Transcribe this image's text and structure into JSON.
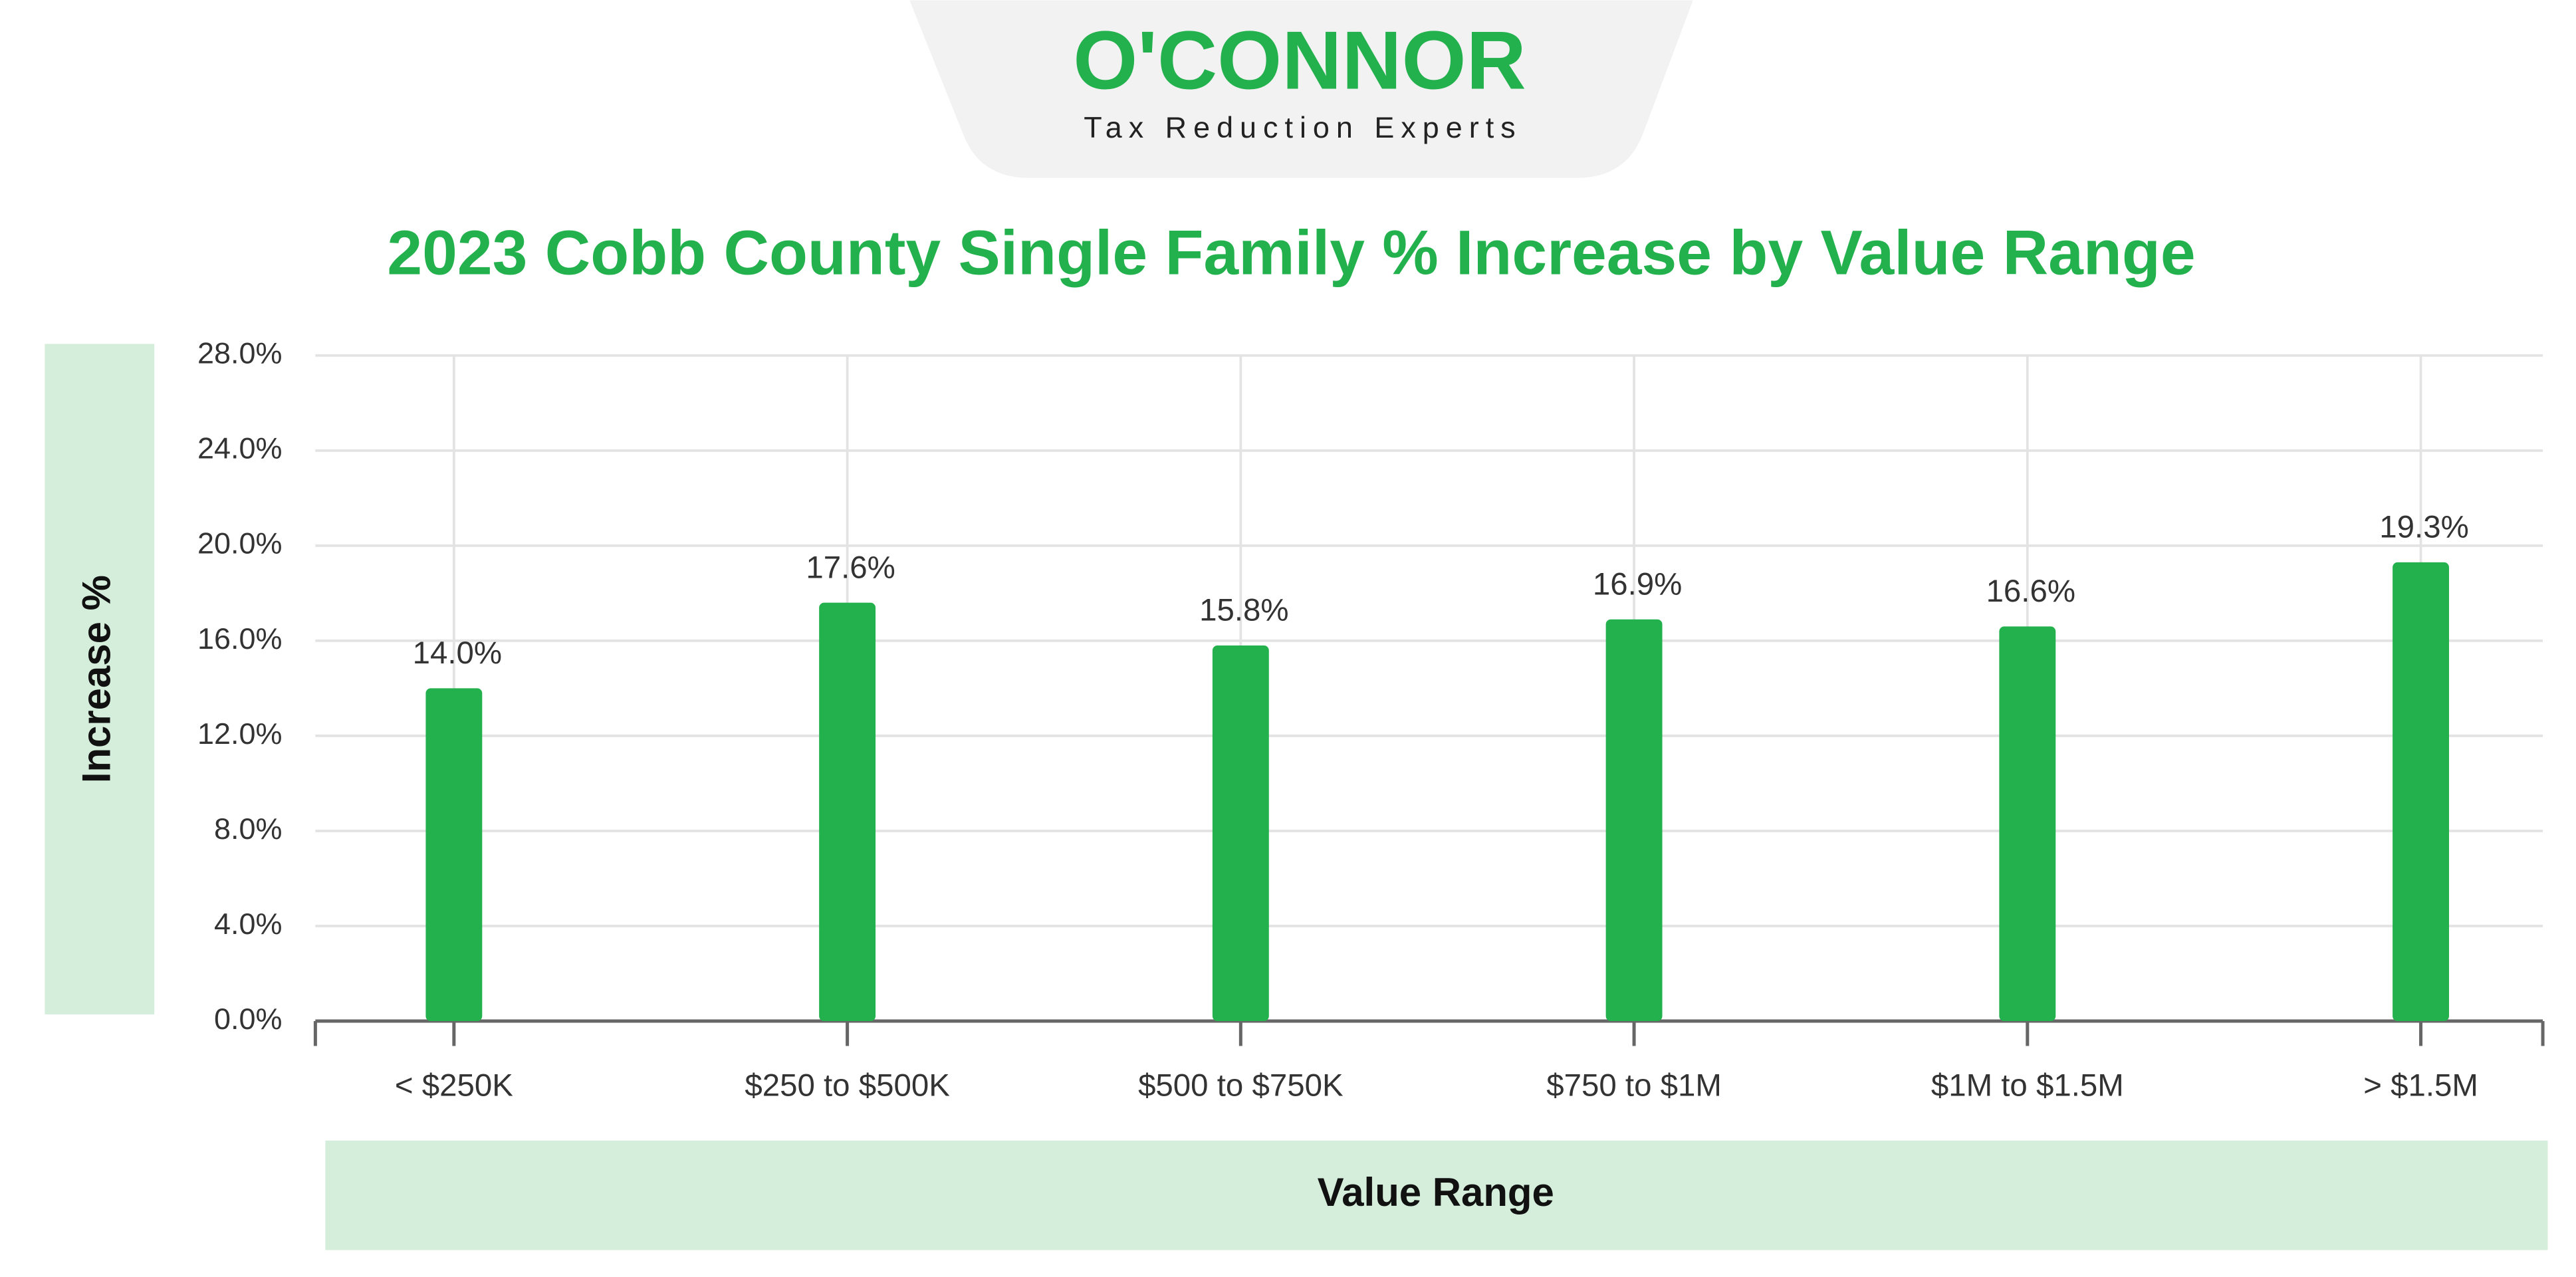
{
  "logo": {
    "name": "O'CONNOR",
    "tagline": "Tax Reduction Experts"
  },
  "chart_data": {
    "type": "bar",
    "title": "2023 Cobb County Single Family % Increase by Value Range",
    "x_label": "Value Range",
    "y_label": "Increase %",
    "categories": [
      "< $250K",
      "$250 to $500K",
      "$500 to $750K",
      "$750 to $1M",
      "$1M to $1.5M",
      "> $1.5M"
    ],
    "values": [
      14.0,
      17.6,
      15.8,
      16.9,
      16.6,
      19.3
    ],
    "value_labels": [
      "14.0%",
      "17.6%",
      "15.8%",
      "16.9%",
      "16.6%",
      "19.3%"
    ],
    "color": "#23b14d",
    "ylim": [
      0,
      28
    ],
    "yticks": [
      {
        "value": 0,
        "label": "0.0%"
      },
      {
        "value": 4,
        "label": "4.0%"
      },
      {
        "value": 8,
        "label": "8.0%"
      },
      {
        "value": 12,
        "label": "12.0%"
      },
      {
        "value": 16,
        "label": "16.0%"
      },
      {
        "value": 20,
        "label": "20.0%"
      },
      {
        "value": 24,
        "label": "24.0%"
      },
      {
        "value": 28,
        "label": "28.0%"
      }
    ],
    "grid": true
  }
}
